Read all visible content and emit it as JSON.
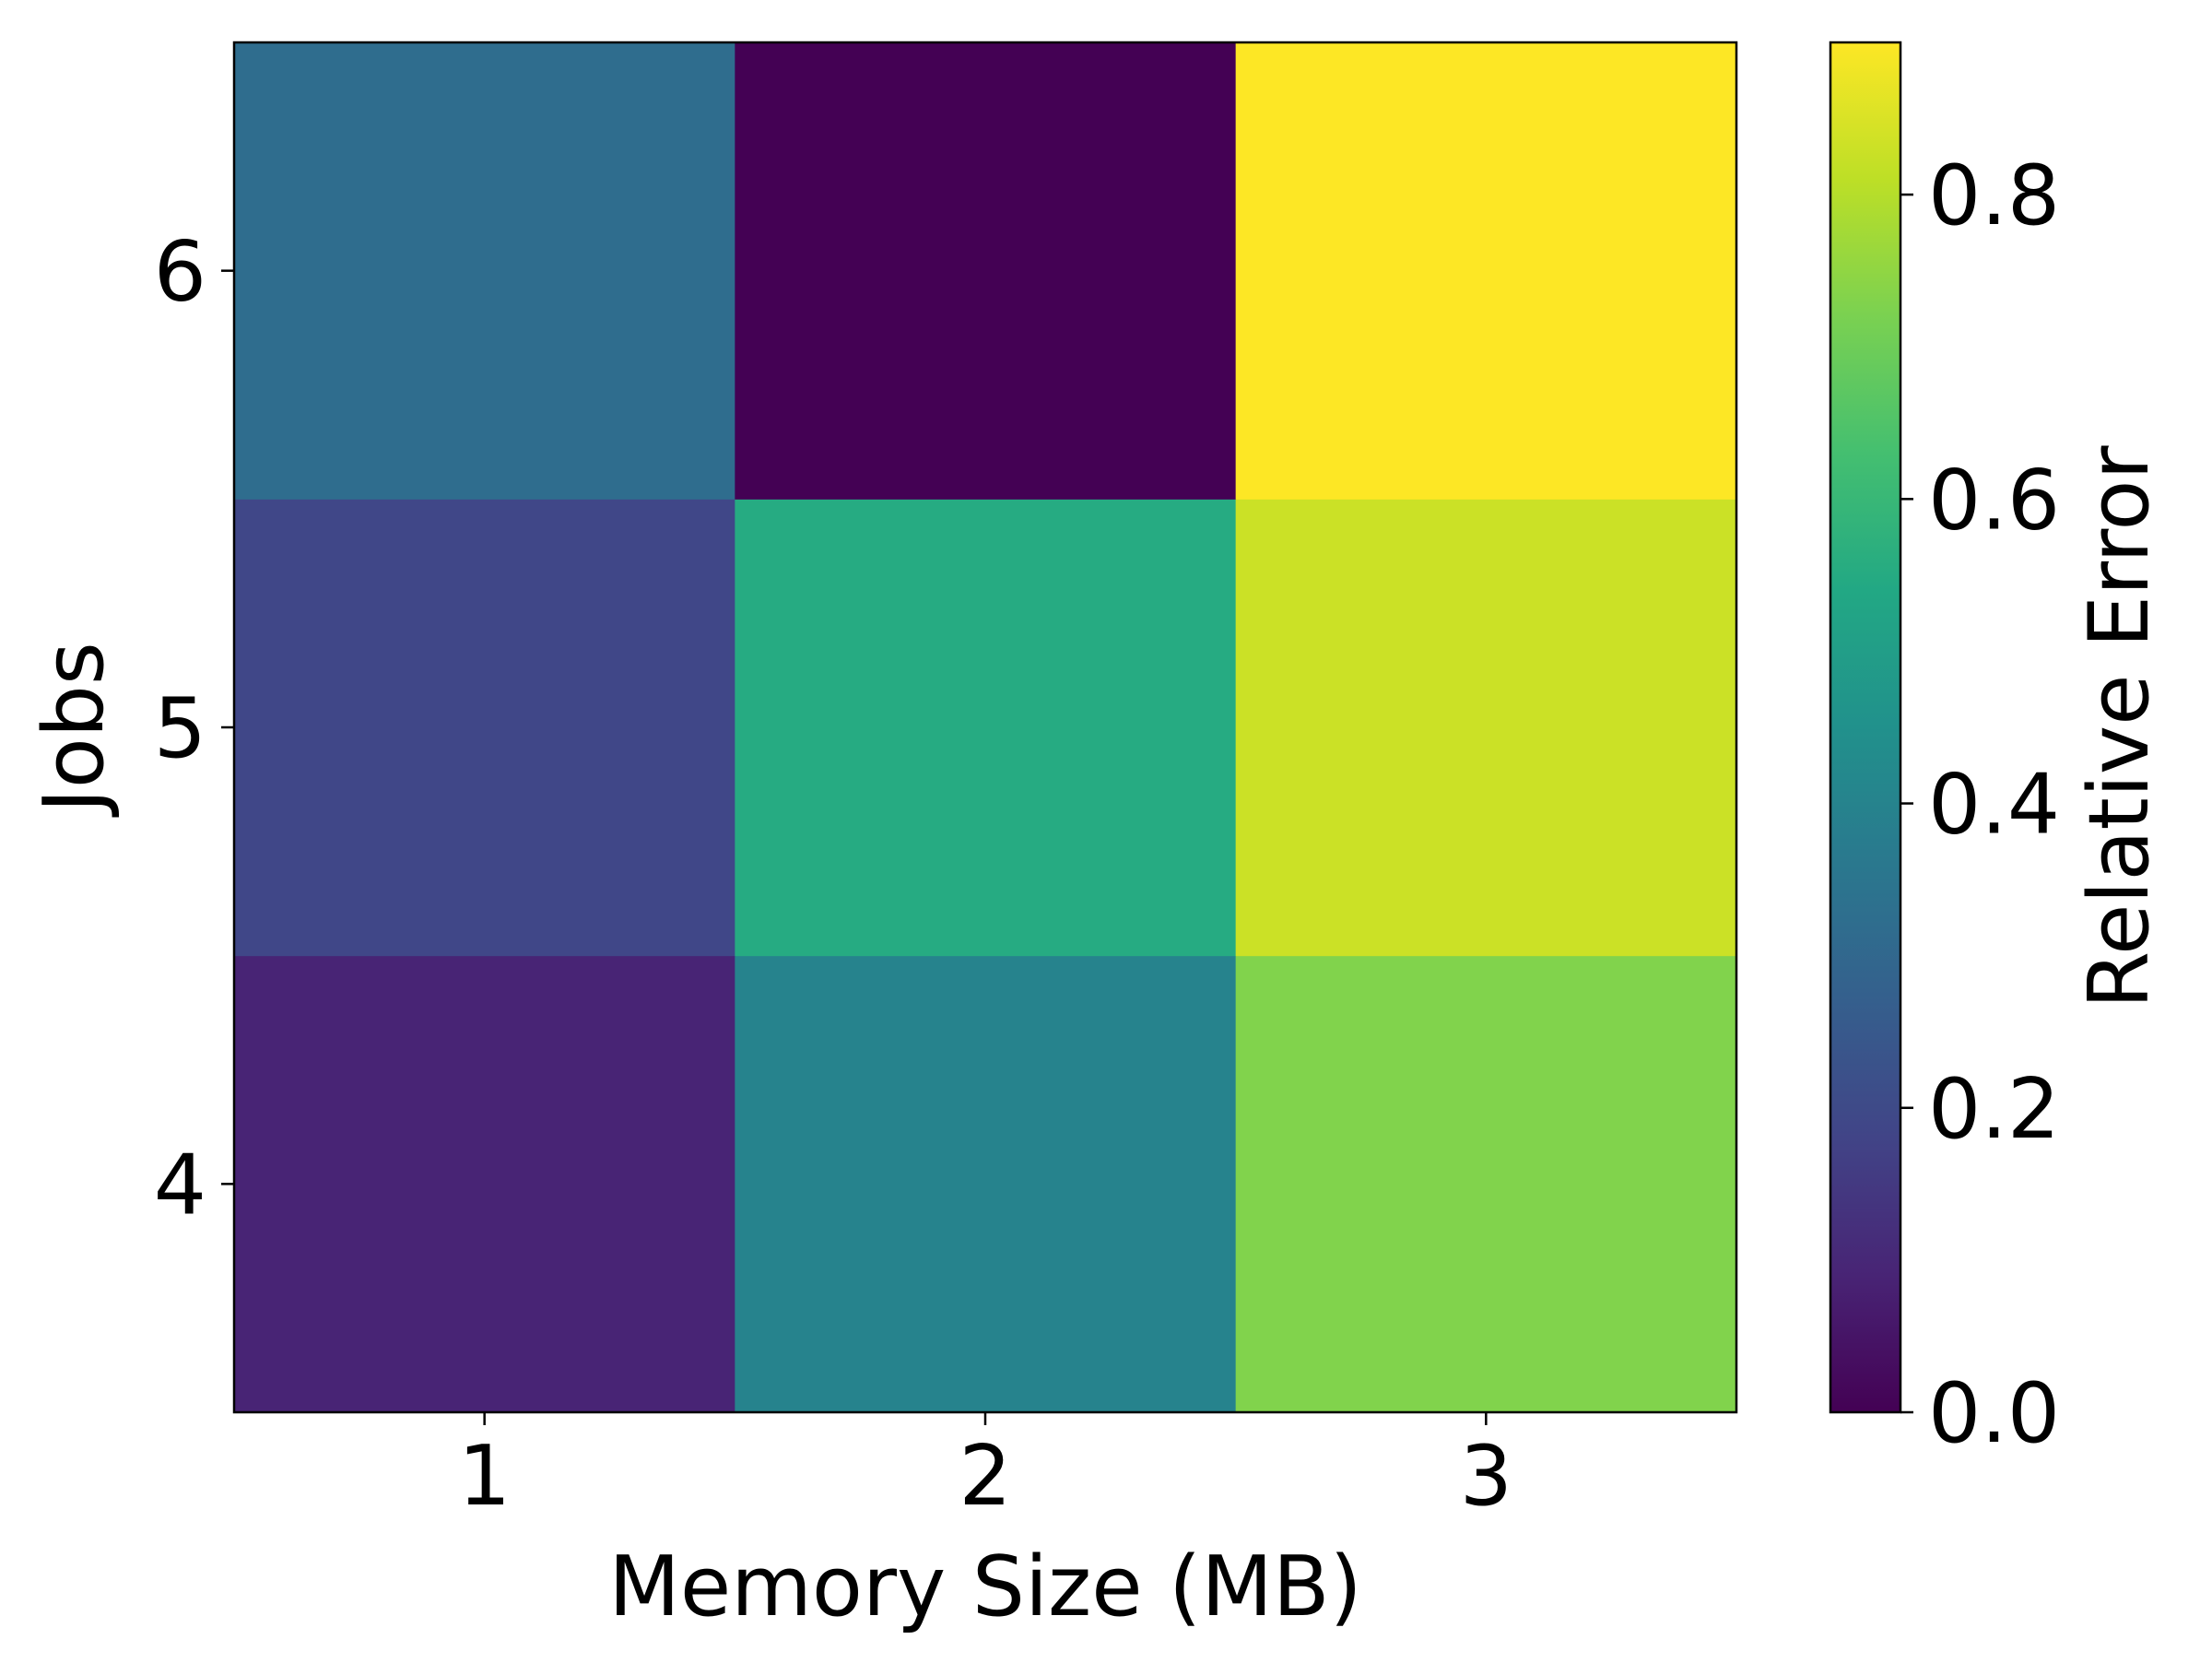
{
  "chart_data": {
    "type": "heatmap",
    "title": "",
    "xlabel": "Memory Size (MB)",
    "ylabel": "Jobs",
    "x": [
      1,
      2,
      3
    ],
    "y": [
      4,
      5,
      6
    ],
    "x_tick_labels": [
      "1",
      "2",
      "3"
    ],
    "y_tick_labels": [
      "4",
      "5",
      "6"
    ],
    "values": [
      [
        0.09,
        0.4,
        0.73
      ],
      [
        0.19,
        0.55,
        0.83
      ],
      [
        0.32,
        0.0,
        0.9
      ]
    ],
    "colorbar": {
      "label": "Relative Error",
      "min": 0.0,
      "max": 0.9,
      "ticks": [
        0.0,
        0.2,
        0.4,
        0.6,
        0.8
      ],
      "tick_labels": [
        "0.0",
        "0.2",
        "0.4",
        "0.6",
        "0.8"
      ],
      "colormap": "viridis"
    },
    "grid": false,
    "legend": "none"
  }
}
